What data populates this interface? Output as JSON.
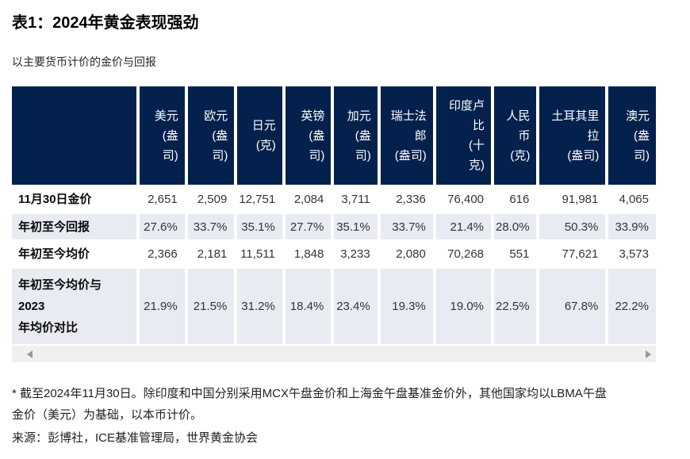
{
  "page": {
    "title": "表1：2024年黄金表现强劲",
    "subtitle": "以主要货币计价的金价与回报"
  },
  "colors": {
    "header_bg": "#03214C",
    "header_text": "#FFFFFF",
    "shaded_row_bg": "#E9EBF2",
    "scrollbar_track": "#F0F0F0",
    "scrollbar_arrow": "#999999"
  },
  "table": {
    "columns": [
      {
        "id": "usd",
        "name": "美元 (盎司)",
        "display": "美元\n(盎\n司)"
      },
      {
        "id": "eur",
        "name": "欧元 (盎司)",
        "display": "欧元\n(盎\n司)"
      },
      {
        "id": "jpy",
        "name": "日元 (克)",
        "display": "日元\n(克)"
      },
      {
        "id": "gbp",
        "name": "英镑 (盎司)",
        "display": "英镑\n(盎\n司)"
      },
      {
        "id": "cad",
        "name": "加元 (盎司)",
        "display": "加元\n(盎\n司)"
      },
      {
        "id": "chf",
        "name": "瑞士法郎 (盎司)",
        "display": "瑞士法\n郎\n(盎司)"
      },
      {
        "id": "inr",
        "name": "印度卢比 (十克)",
        "display": "印度卢\n比\n(十\n克)"
      },
      {
        "id": "cny",
        "name": "人民币 (克)",
        "display": "人民\n币\n(克)"
      },
      {
        "id": "try",
        "name": "土耳其里拉 (盎司)",
        "display": "土耳其里\n拉\n(盎司)"
      },
      {
        "id": "aud",
        "name": "澳元 (盎司)",
        "display": "澳元\n(盎\n司)"
      }
    ],
    "rows": [
      {
        "label": "11月30日金价",
        "values": [
          "2,651",
          "2,509",
          "12,751",
          "2,084",
          "3,711",
          "2,336",
          "76,400",
          "616",
          "91,981",
          "4,065"
        ]
      },
      {
        "label": "年初至今回报",
        "values": [
          "27.6%",
          "33.7%",
          "35.1%",
          "27.7%",
          "35.1%",
          "33.7%",
          "21.4%",
          "28.0%",
          "50.3%",
          "33.9%"
        ]
      },
      {
        "label": "年初至今均价",
        "values": [
          "2,366",
          "2,181",
          "11,511",
          "1,848",
          "3,233",
          "2,080",
          "70,268",
          "551",
          "77,621",
          "3,573"
        ]
      },
      {
        "label": "年初至今均价与\n2023\n年均价对比",
        "values": [
          "21.9%",
          "21.5%",
          "31.2%",
          "18.4%",
          "23.4%",
          "19.3%",
          "19.0%",
          "22.5%",
          "67.8%",
          "22.2%"
        ]
      }
    ]
  },
  "footnotes": {
    "note": "* 截至2024年11月30日。除印度和中国分别采用MCX午盘金价和上海金午盘基准金价外，其他国家均以LBMA午盘\n金价（美元）为基础，以本币计价。",
    "source": "来源：彭博社，ICE基准管理局，世界黄金协会"
  },
  "chart_data": {
    "type": "table",
    "title": "表1：2024年黄金表现强劲",
    "subtitle": "以主要货币计价的金价与回报",
    "columns": [
      "美元 (盎司)",
      "欧元 (盎司)",
      "日元 (克)",
      "英镑 (盎司)",
      "加元 (盎司)",
      "瑞士法郎 (盎司)",
      "印度卢比 (十克)",
      "人民币 (克)",
      "土耳其里拉 (盎司)",
      "澳元 (盎司)"
    ],
    "rows": [
      {
        "label": "11月30日金价",
        "values": [
          2651,
          2509,
          12751,
          2084,
          3711,
          2336,
          76400,
          616,
          91981,
          4065
        ]
      },
      {
        "label": "年初至今回报",
        "values": [
          "27.6%",
          "33.7%",
          "35.1%",
          "27.7%",
          "35.1%",
          "33.7%",
          "21.4%",
          "28.0%",
          "50.3%",
          "33.9%"
        ]
      },
      {
        "label": "年初至今均价",
        "values": [
          2366,
          2181,
          11511,
          1848,
          3233,
          2080,
          70268,
          551,
          77621,
          3573
        ]
      },
      {
        "label": "年初至今均价与2023年均价对比",
        "values": [
          "21.9%",
          "21.5%",
          "31.2%",
          "18.4%",
          "23.4%",
          "19.3%",
          "19.0%",
          "22.5%",
          "67.8%",
          "22.2%"
        ]
      }
    ]
  }
}
